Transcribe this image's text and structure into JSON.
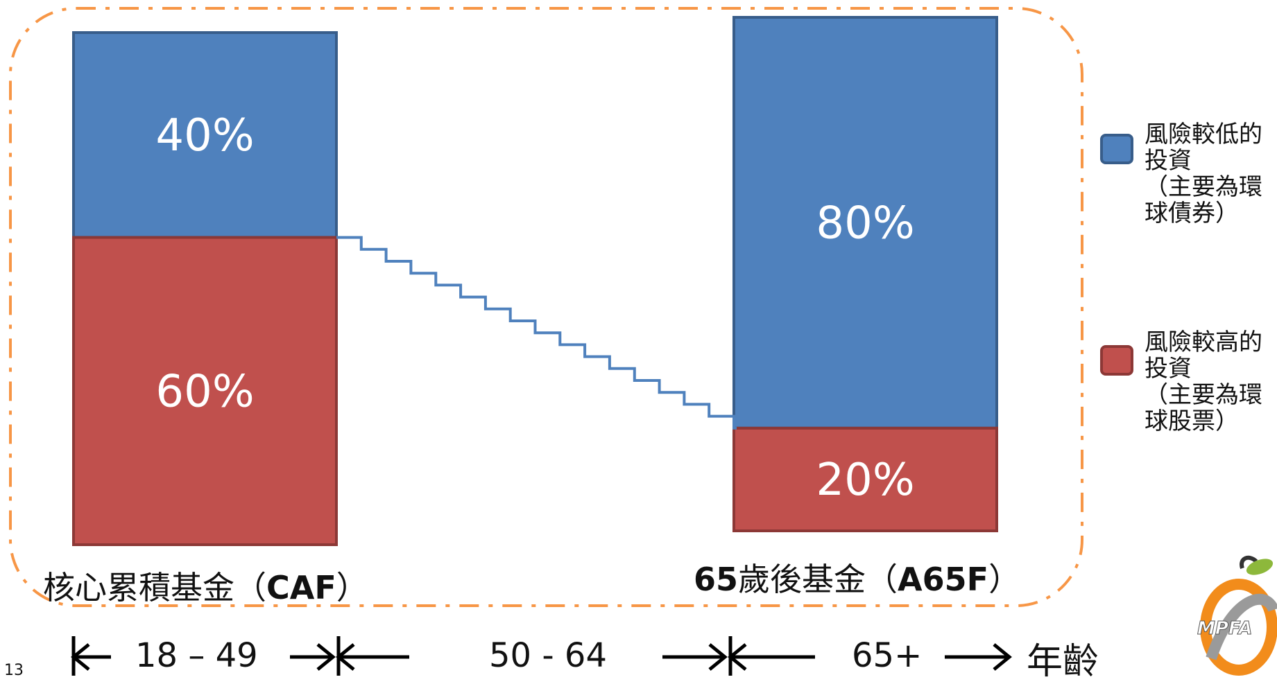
{
  "chart_data": {
    "type": "bar",
    "stacked": true,
    "categories": [
      "核心累積基金（CAF）",
      "65歲後基金（A65F）"
    ],
    "series": [
      {
        "name": "風險較低的投資（主要為環球債券）",
        "values": [
          40,
          80
        ],
        "color": "#4F81BD"
      },
      {
        "name": "風險較高的投資（主要為環球股票）",
        "values": [
          60,
          20
        ],
        "color": "#C0504D"
      }
    ],
    "value_labels": [
      [
        "40%",
        "80%"
      ],
      [
        "60%",
        "20%"
      ]
    ],
    "ylim": [
      0,
      100
    ],
    "transition": "stepped glide path from CAF to A65F",
    "legend_position": "right"
  },
  "fund_labels": {
    "caf_prefix": "核心累積基金（",
    "caf_code": "CAF",
    "caf_suffix": "）",
    "a65f_age": "65",
    "a65f_prefix": "歲後基金（",
    "a65f_code": "A65F",
    "a65f_suffix": "）"
  },
  "legend": {
    "low_risk": [
      "風險較低的",
      "投資",
      "（主要為環",
      "球債券）"
    ],
    "high_risk": [
      "風險較高的",
      "投資",
      "（主要為環",
      "球股票）"
    ]
  },
  "timeline": {
    "range_1": "18 – 49",
    "range_2": "50 - 64",
    "range_3": "65+",
    "axis_label": "年齡"
  },
  "page_number": "13",
  "logo_text": "MPFA",
  "colors": {
    "blue": "#4F81BD",
    "blue_border": "#385D8A",
    "red": "#C0504D",
    "red_border": "#8C3836",
    "dashed_border": "#F79646"
  }
}
